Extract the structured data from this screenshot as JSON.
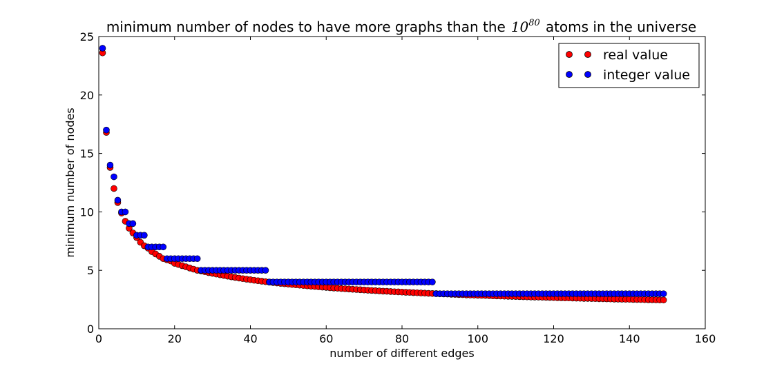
{
  "chart_data": {
    "type": "scatter",
    "title": {
      "prefix": "minimum number of nodes to have more graphs than the",
      "math_base": "10",
      "math_exp": "80",
      "suffix": "atoms in the universe"
    },
    "xlabel": "number of different edges",
    "ylabel": "minimum number of nodes",
    "xlim": [
      0,
      160
    ],
    "ylim": [
      0,
      25
    ],
    "xticks": [
      0,
      20,
      40,
      60,
      80,
      100,
      120,
      140,
      160
    ],
    "yticks": [
      0,
      5,
      10,
      15,
      20,
      25
    ],
    "grid": false,
    "legend_position": "top-right",
    "series": [
      {
        "name": "real value",
        "color": "#ff0000",
        "x": [
          1,
          2,
          3,
          4,
          5,
          6,
          7,
          8,
          9,
          10,
          11,
          12,
          13,
          14,
          15,
          16,
          17,
          18,
          19,
          20,
          21,
          22,
          23,
          24,
          25,
          26,
          27,
          28,
          29,
          30,
          31,
          32,
          33,
          34,
          35,
          36,
          37,
          38,
          39,
          40,
          41,
          42,
          43,
          44,
          45,
          46,
          47,
          48,
          49,
          50,
          51,
          52,
          53,
          54,
          55,
          56,
          57,
          58,
          59,
          60,
          61,
          62,
          63,
          64,
          65,
          66,
          67,
          68,
          69,
          70,
          71,
          72,
          73,
          74,
          75,
          76,
          77,
          78,
          79,
          80,
          81,
          82,
          83,
          84,
          85,
          86,
          87,
          88,
          89,
          90,
          91,
          92,
          93,
          94,
          95,
          96,
          97,
          98,
          99,
          100,
          101,
          102,
          103,
          104,
          105,
          106,
          107,
          108,
          109,
          110,
          111,
          112,
          113,
          114,
          115,
          116,
          117,
          118,
          119,
          120,
          121,
          122,
          123,
          124,
          125,
          126,
          127,
          128,
          129,
          130,
          131,
          132,
          133,
          134,
          135,
          136,
          137,
          138,
          139,
          140,
          141,
          142,
          143,
          144,
          145,
          146,
          147,
          148,
          149
        ],
        "y": [
          23.6,
          16.8,
          13.8,
          12.0,
          10.8,
          9.9,
          9.2,
          8.6,
          8.2,
          7.8,
          7.4,
          7.1,
          6.9,
          6.6,
          6.4,
          6.2,
          6.0,
          5.9,
          5.8,
          5.6,
          5.5,
          5.4,
          5.3,
          5.2,
          5.1,
          5.0,
          4.95,
          4.88,
          4.8,
          4.74,
          4.68,
          4.62,
          4.56,
          4.5,
          4.44,
          4.39,
          4.34,
          4.29,
          4.24,
          4.2,
          4.15,
          4.11,
          4.07,
          4.03,
          3.99,
          3.95,
          3.92,
          3.88,
          3.85,
          3.82,
          3.79,
          3.76,
          3.73,
          3.7,
          3.67,
          3.64,
          3.62,
          3.59,
          3.56,
          3.54,
          3.51,
          3.49,
          3.47,
          3.44,
          3.42,
          3.4,
          3.38,
          3.36,
          3.34,
          3.32,
          3.3,
          3.28,
          3.26,
          3.24,
          3.22,
          3.21,
          3.19,
          3.17,
          3.16,
          3.14,
          3.12,
          3.11,
          3.09,
          3.08,
          3.06,
          3.05,
          3.03,
          3.02,
          3.01,
          2.99,
          2.98,
          2.97,
          2.95,
          2.94,
          2.93,
          2.92,
          2.9,
          2.89,
          2.88,
          2.87,
          2.86,
          2.85,
          2.84,
          2.82,
          2.81,
          2.8,
          2.79,
          2.78,
          2.77,
          2.76,
          2.75,
          2.74,
          2.73,
          2.72,
          2.71,
          2.71,
          2.7,
          2.69,
          2.68,
          2.67,
          2.66,
          2.65,
          2.64,
          2.64,
          2.63,
          2.62,
          2.61,
          2.6,
          2.6,
          2.59,
          2.58,
          2.57,
          2.57,
          2.56,
          2.55,
          2.54,
          2.54,
          2.53,
          2.52,
          2.52,
          2.51,
          2.5,
          2.5,
          2.49,
          2.48,
          2.48,
          2.47,
          2.46,
          2.46
        ]
      },
      {
        "name": "integer value",
        "color": "#0000ff",
        "x": [
          1,
          2,
          3,
          4,
          5,
          6,
          7,
          8,
          9,
          10,
          11,
          12,
          13,
          14,
          15,
          16,
          17,
          18,
          19,
          20,
          21,
          22,
          23,
          24,
          25,
          26,
          27,
          28,
          29,
          30,
          31,
          32,
          33,
          34,
          35,
          36,
          37,
          38,
          39,
          40,
          41,
          42,
          43,
          44,
          45,
          46,
          47,
          48,
          49,
          50,
          51,
          52,
          53,
          54,
          55,
          56,
          57,
          58,
          59,
          60,
          61,
          62,
          63,
          64,
          65,
          66,
          67,
          68,
          69,
          70,
          71,
          72,
          73,
          74,
          75,
          76,
          77,
          78,
          79,
          80,
          81,
          82,
          83,
          84,
          85,
          86,
          87,
          88,
          89,
          90,
          91,
          92,
          93,
          94,
          95,
          96,
          97,
          98,
          99,
          100,
          101,
          102,
          103,
          104,
          105,
          106,
          107,
          108,
          109,
          110,
          111,
          112,
          113,
          114,
          115,
          116,
          117,
          118,
          119,
          120,
          121,
          122,
          123,
          124,
          125,
          126,
          127,
          128,
          129,
          130,
          131,
          132,
          133,
          134,
          135,
          136,
          137,
          138,
          139,
          140,
          141,
          142,
          143,
          144,
          145,
          146,
          147,
          148,
          149
        ],
        "y": [
          24,
          17,
          14,
          13,
          11,
          10,
          10,
          9,
          9,
          8,
          8,
          8,
          7,
          7,
          7,
          7,
          7,
          6,
          6,
          6,
          6,
          6,
          6,
          6,
          6,
          6,
          5,
          5,
          5,
          5,
          5,
          5,
          5,
          5,
          5,
          5,
          5,
          5,
          5,
          5,
          5,
          5,
          5,
          5,
          4,
          4,
          4,
          4,
          4,
          4,
          4,
          4,
          4,
          4,
          4,
          4,
          4,
          4,
          4,
          4,
          4,
          4,
          4,
          4,
          4,
          4,
          4,
          4,
          4,
          4,
          4,
          4,
          4,
          4,
          4,
          4,
          4,
          4,
          4,
          4,
          4,
          4,
          4,
          4,
          4,
          4,
          4,
          4,
          3,
          3,
          3,
          3,
          3,
          3,
          3,
          3,
          3,
          3,
          3,
          3,
          3,
          3,
          3,
          3,
          3,
          3,
          3,
          3,
          3,
          3,
          3,
          3,
          3,
          3,
          3,
          3,
          3,
          3,
          3,
          3,
          3,
          3,
          3,
          3,
          3,
          3,
          3,
          3,
          3,
          3,
          3,
          3,
          3,
          3,
          3,
          3,
          3,
          3,
          3,
          3,
          3,
          3,
          3,
          3,
          3,
          3,
          3,
          3,
          3
        ]
      }
    ]
  }
}
